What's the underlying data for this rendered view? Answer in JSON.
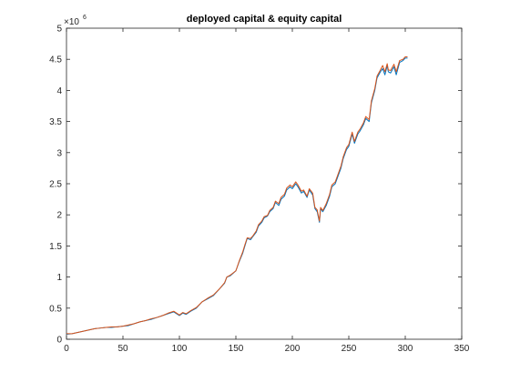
{
  "chart_data": {
    "type": "line",
    "title": "deployed capital & equity capital",
    "xlabel": "",
    "ylabel": "",
    "xlim": [
      0,
      350
    ],
    "ylim": [
      0,
      5
    ],
    "x_ticks": [
      0,
      50,
      100,
      150,
      200,
      250,
      300,
      350
    ],
    "y_ticks": [
      0,
      0.5,
      1,
      1.5,
      2,
      2.5,
      3,
      3.5,
      4,
      4.5,
      5
    ],
    "y_exponent": "×10",
    "y_exponent_power": "6",
    "grid": false,
    "legend": "none",
    "series": [
      {
        "color": "#0072BD",
        "x": [
          0,
          5,
          10,
          15,
          20,
          25,
          30,
          35,
          40,
          45,
          50,
          55,
          60,
          65,
          70,
          75,
          80,
          85,
          90,
          95,
          100,
          103,
          106,
          110,
          115,
          120,
          125,
          130,
          135,
          140,
          142,
          145,
          150,
          153,
          156,
          158,
          160,
          163,
          165,
          168,
          170,
          173,
          175,
          178,
          180,
          183,
          185,
          188,
          190,
          193,
          195,
          198,
          200,
          203,
          205,
          208,
          210,
          213,
          215,
          218,
          220,
          222,
          224,
          225,
          227,
          230,
          233,
          235,
          238,
          240,
          243,
          245,
          248,
          250,
          253,
          255,
          258,
          260,
          263,
          265,
          268,
          270,
          273,
          275,
          278,
          280,
          282,
          284,
          285,
          287,
          290,
          292,
          295,
          298,
          300,
          302
        ],
        "values": [
          0.08,
          0.09,
          0.11,
          0.13,
          0.15,
          0.17,
          0.18,
          0.19,
          0.19,
          0.2,
          0.21,
          0.22,
          0.25,
          0.28,
          0.3,
          0.32,
          0.35,
          0.38,
          0.41,
          0.44,
          0.38,
          0.42,
          0.4,
          0.45,
          0.5,
          0.6,
          0.65,
          0.7,
          0.8,
          0.9,
          1.0,
          1.02,
          1.1,
          1.25,
          1.38,
          1.5,
          1.62,
          1.6,
          1.65,
          1.72,
          1.82,
          1.88,
          1.95,
          1.98,
          2.05,
          2.1,
          2.2,
          2.15,
          2.25,
          2.3,
          2.4,
          2.45,
          2.42,
          2.5,
          2.45,
          2.35,
          2.38,
          2.28,
          2.4,
          2.32,
          2.1,
          2.05,
          1.88,
          2.1,
          2.05,
          2.15,
          2.3,
          2.45,
          2.5,
          2.6,
          2.75,
          2.9,
          3.05,
          3.1,
          3.3,
          3.15,
          3.3,
          3.35,
          3.45,
          3.55,
          3.5,
          3.8,
          4.0,
          4.2,
          4.3,
          4.35,
          4.25,
          4.4,
          4.3,
          4.28,
          4.38,
          4.25,
          4.45,
          4.48,
          4.52,
          4.52
        ]
      },
      {
        "color": "#D95319",
        "x": [
          0,
          5,
          10,
          15,
          20,
          25,
          30,
          35,
          40,
          45,
          50,
          55,
          60,
          65,
          70,
          75,
          80,
          85,
          90,
          95,
          100,
          103,
          106,
          110,
          115,
          120,
          125,
          130,
          135,
          140,
          142,
          145,
          150,
          153,
          156,
          158,
          160,
          163,
          165,
          168,
          170,
          173,
          175,
          178,
          180,
          183,
          185,
          188,
          190,
          193,
          195,
          198,
          200,
          203,
          205,
          208,
          210,
          213,
          215,
          218,
          220,
          222,
          224,
          225,
          227,
          230,
          233,
          235,
          238,
          240,
          243,
          245,
          248,
          250,
          253,
          255,
          258,
          260,
          263,
          265,
          268,
          270,
          273,
          275,
          278,
          280,
          282,
          284,
          285,
          287,
          290,
          292,
          295,
          298,
          300,
          302
        ],
        "values": [
          0.09,
          0.09,
          0.11,
          0.13,
          0.15,
          0.17,
          0.18,
          0.19,
          0.2,
          0.2,
          0.21,
          0.23,
          0.25,
          0.28,
          0.3,
          0.33,
          0.35,
          0.38,
          0.42,
          0.45,
          0.39,
          0.43,
          0.41,
          0.46,
          0.51,
          0.6,
          0.66,
          0.71,
          0.8,
          0.91,
          1.0,
          1.03,
          1.1,
          1.26,
          1.4,
          1.52,
          1.63,
          1.62,
          1.66,
          1.74,
          1.84,
          1.9,
          1.97,
          1.99,
          2.07,
          2.12,
          2.22,
          2.18,
          2.28,
          2.33,
          2.43,
          2.48,
          2.45,
          2.53,
          2.48,
          2.38,
          2.4,
          2.3,
          2.42,
          2.35,
          2.12,
          2.08,
          1.9,
          2.12,
          2.07,
          2.18,
          2.33,
          2.48,
          2.53,
          2.63,
          2.78,
          2.93,
          3.08,
          3.13,
          3.33,
          3.18,
          3.33,
          3.38,
          3.48,
          3.58,
          3.53,
          3.83,
          4.03,
          4.23,
          4.33,
          4.4,
          4.3,
          4.43,
          4.33,
          4.32,
          4.42,
          4.3,
          4.48,
          4.5,
          4.54,
          4.54
        ]
      }
    ]
  }
}
